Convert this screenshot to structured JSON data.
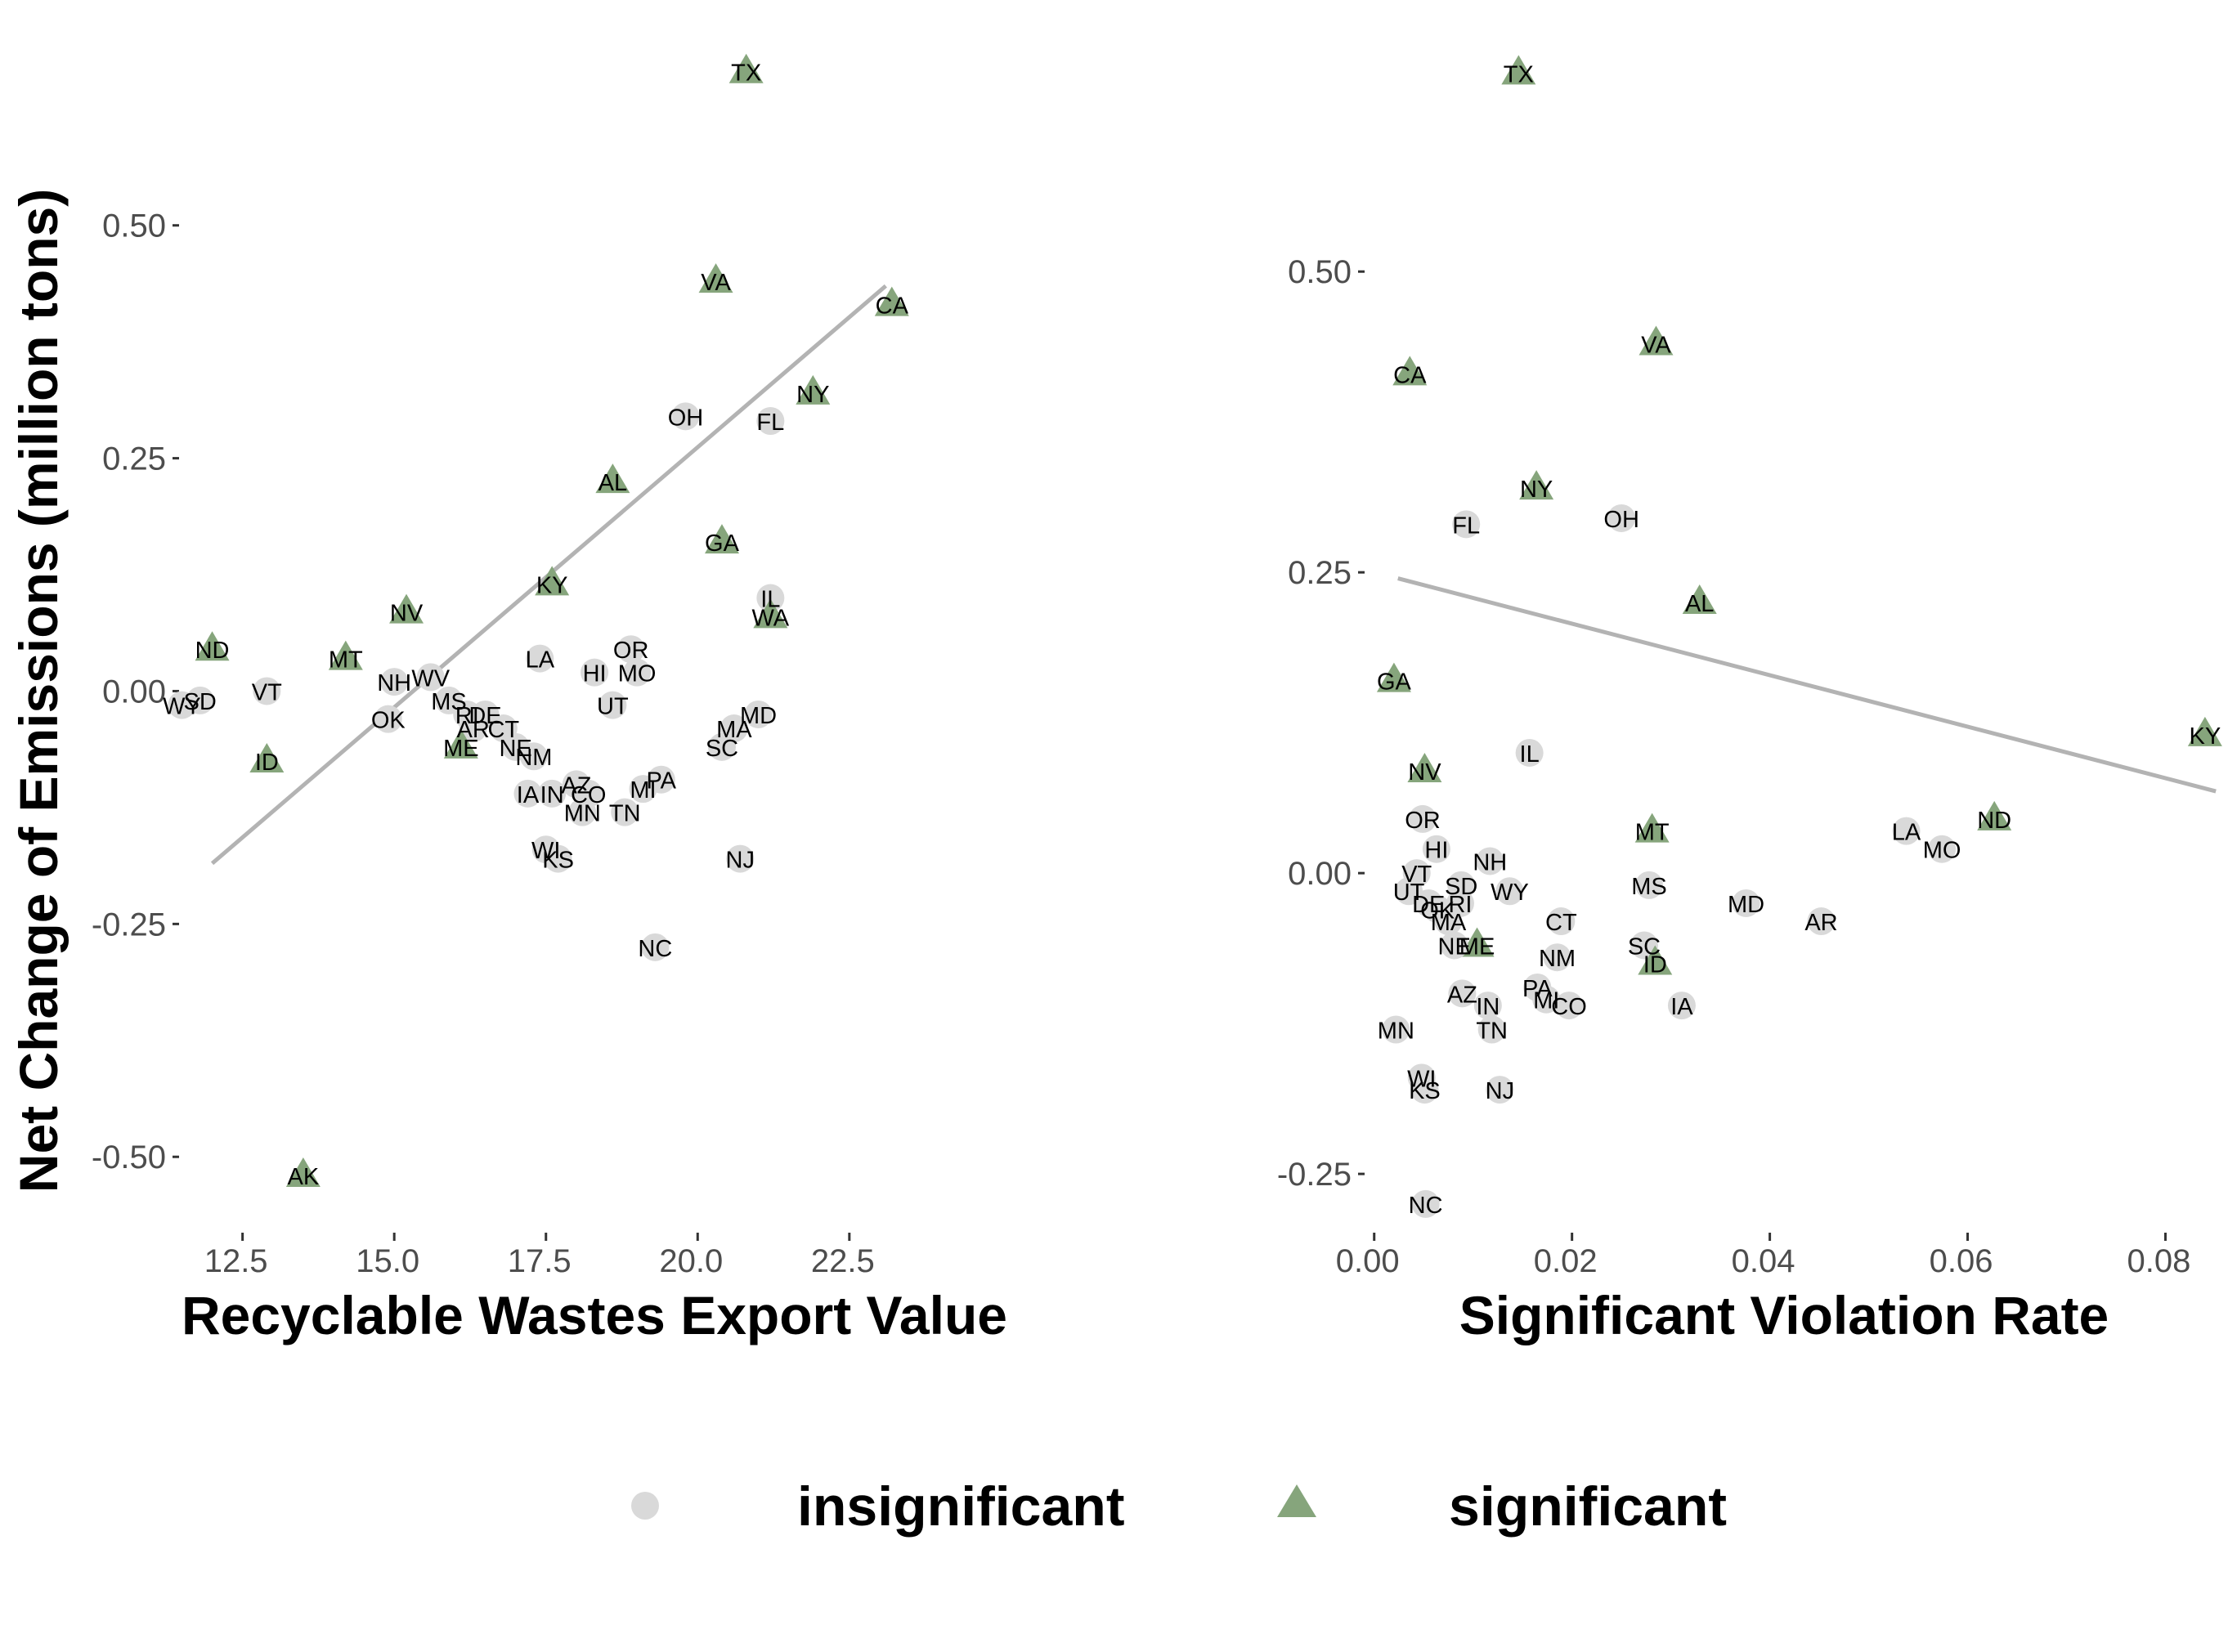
{
  "colors": {
    "insignificant": "#d9d9d9",
    "significant": "#86a57c",
    "fit_line": "#b3b3b3",
    "tick_text": "#4d4d4d"
  },
  "legend": {
    "placement": "bottom",
    "items": [
      {
        "label": "insignificant",
        "shape": "circle"
      },
      {
        "label": "significant",
        "shape": "triangle"
      }
    ]
  },
  "chart_data": [
    {
      "type": "scatter",
      "panel": "left",
      "xlabel": "Recyclable Wastes Export Value",
      "ylabel": "Net Change of Emissions (million tons)",
      "xlim": [
        11.4,
        24.2
      ],
      "ylim": [
        -0.57,
        0.67
      ],
      "grid": false,
      "xticks": [
        12.5,
        15.0,
        17.5,
        20.0,
        22.5
      ],
      "xtick_labels": [
        "12.5",
        "15.0",
        "17.5",
        "20.0",
        "22.5"
      ],
      "yticks": [
        0.5,
        0.25,
        0.0,
        -0.25,
        -0.5
      ],
      "ytick_labels": [
        "0.50",
        "0.25",
        "0.00",
        "-0.25",
        "-0.50"
      ],
      "fit_line": [
        [
          12.0,
          -0.185
        ],
        [
          23.1,
          0.435
        ]
      ],
      "points": [
        {
          "label": "TX",
          "x": 20.8,
          "y": 0.665,
          "group": "significant"
        },
        {
          "label": "VA",
          "x": 20.3,
          "y": 0.44,
          "group": "significant"
        },
        {
          "label": "CA",
          "x": 23.2,
          "y": 0.415,
          "group": "significant"
        },
        {
          "label": "NY",
          "x": 21.9,
          "y": 0.32,
          "group": "significant"
        },
        {
          "label": "OH",
          "x": 19.8,
          "y": 0.295,
          "group": "insignificant"
        },
        {
          "label": "FL",
          "x": 21.2,
          "y": 0.29,
          "group": "insignificant"
        },
        {
          "label": "AL",
          "x": 18.6,
          "y": 0.225,
          "group": "significant"
        },
        {
          "label": "GA",
          "x": 20.4,
          "y": 0.16,
          "group": "significant"
        },
        {
          "label": "KY",
          "x": 17.6,
          "y": 0.115,
          "group": "significant"
        },
        {
          "label": "IL",
          "x": 21.2,
          "y": 0.1,
          "group": "insignificant"
        },
        {
          "label": "WA",
          "x": 21.2,
          "y": 0.08,
          "group": "significant"
        },
        {
          "label": "NV",
          "x": 15.2,
          "y": 0.085,
          "group": "significant"
        },
        {
          "label": "ND",
          "x": 12.0,
          "y": 0.045,
          "group": "significant"
        },
        {
          "label": "OR",
          "x": 18.9,
          "y": 0.045,
          "group": "insignificant"
        },
        {
          "label": "MT",
          "x": 14.2,
          "y": 0.035,
          "group": "significant"
        },
        {
          "label": "LA",
          "x": 17.4,
          "y": 0.035,
          "group": "insignificant"
        },
        {
          "label": "HI",
          "x": 18.3,
          "y": 0.02,
          "group": "insignificant"
        },
        {
          "label": "MO",
          "x": 19.0,
          "y": 0.02,
          "group": "insignificant"
        },
        {
          "label": "WV",
          "x": 15.6,
          "y": 0.015,
          "group": "insignificant"
        },
        {
          "label": "NH",
          "x": 15.0,
          "y": 0.01,
          "group": "insignificant"
        },
        {
          "label": "VT",
          "x": 12.9,
          "y": 0.0,
          "group": "insignificant"
        },
        {
          "label": "SD",
          "x": 11.8,
          "y": -0.01,
          "group": "insignificant"
        },
        {
          "label": "WY",
          "x": 11.5,
          "y": -0.015,
          "group": "insignificant"
        },
        {
          "label": "MS",
          "x": 15.9,
          "y": -0.01,
          "group": "insignificant"
        },
        {
          "label": "UT",
          "x": 18.6,
          "y": -0.015,
          "group": "insignificant"
        },
        {
          "label": "OK",
          "x": 14.9,
          "y": -0.03,
          "group": "insignificant"
        },
        {
          "label": "RI",
          "x": 16.2,
          "y": -0.025,
          "group": "insignificant"
        },
        {
          "label": "DE",
          "x": 16.5,
          "y": -0.025,
          "group": "insignificant"
        },
        {
          "label": "MD",
          "x": 21.0,
          "y": -0.025,
          "group": "insignificant"
        },
        {
          "label": "AR",
          "x": 16.3,
          "y": -0.04,
          "group": "insignificant"
        },
        {
          "label": "CT",
          "x": 16.8,
          "y": -0.04,
          "group": "insignificant"
        },
        {
          "label": "MA",
          "x": 20.6,
          "y": -0.04,
          "group": "insignificant"
        },
        {
          "label": "ME",
          "x": 16.1,
          "y": -0.06,
          "group": "significant"
        },
        {
          "label": "NE",
          "x": 17.0,
          "y": -0.06,
          "group": "insignificant"
        },
        {
          "label": "SC",
          "x": 20.4,
          "y": -0.06,
          "group": "insignificant"
        },
        {
          "label": "NM",
          "x": 17.3,
          "y": -0.07,
          "group": "insignificant"
        },
        {
          "label": "ID",
          "x": 12.9,
          "y": -0.075,
          "group": "significant"
        },
        {
          "label": "PA",
          "x": 19.4,
          "y": -0.095,
          "group": "insignificant"
        },
        {
          "label": "AZ",
          "x": 18.0,
          "y": -0.1,
          "group": "insignificant"
        },
        {
          "label": "MI",
          "x": 19.1,
          "y": -0.105,
          "group": "insignificant"
        },
        {
          "label": "IA",
          "x": 17.2,
          "y": -0.11,
          "group": "insignificant"
        },
        {
          "label": "IN",
          "x": 17.6,
          "y": -0.11,
          "group": "insignificant"
        },
        {
          "label": "CO",
          "x": 18.2,
          "y": -0.11,
          "group": "insignificant"
        },
        {
          "label": "MN",
          "x": 18.1,
          "y": -0.13,
          "group": "insignificant"
        },
        {
          "label": "TN",
          "x": 18.8,
          "y": -0.13,
          "group": "insignificant"
        },
        {
          "label": "WI",
          "x": 17.5,
          "y": -0.17,
          "group": "insignificant"
        },
        {
          "label": "KS",
          "x": 17.7,
          "y": -0.18,
          "group": "insignificant"
        },
        {
          "label": "NJ",
          "x": 20.7,
          "y": -0.18,
          "group": "insignificant"
        },
        {
          "label": "NC",
          "x": 19.3,
          "y": -0.275,
          "group": "insignificant"
        },
        {
          "label": "AK",
          "x": 13.5,
          "y": -0.52,
          "group": "significant"
        }
      ]
    },
    {
      "type": "scatter",
      "panel": "right",
      "xlabel": "Significant Violation Rate",
      "ylabel": "",
      "xlim": [
        -0.0013,
        0.0855
      ],
      "ylim": [
        -0.29,
        0.67
      ],
      "grid": false,
      "xticks": [
        0.0,
        0.02,
        0.04,
        0.06,
        0.08
      ],
      "xtick_labels": [
        "0.00",
        "0.02",
        "0.04",
        "0.06",
        "0.08"
      ],
      "yticks": [
        0.5,
        0.25,
        0.0,
        -0.25
      ],
      "ytick_labels": [
        "0.50",
        "0.25",
        "0.00",
        "-0.25"
      ],
      "fit_line": [
        [
          0.0024,
          0.245
        ],
        [
          0.0851,
          0.068
        ]
      ],
      "points": [
        {
          "label": "TX",
          "x": 0.0146,
          "y": 0.665,
          "group": "significant"
        },
        {
          "label": "VA",
          "x": 0.0285,
          "y": 0.44,
          "group": "significant"
        },
        {
          "label": "CA",
          "x": 0.0036,
          "y": 0.415,
          "group": "significant"
        },
        {
          "label": "NY",
          "x": 0.0164,
          "y": 0.32,
          "group": "significant"
        },
        {
          "label": "OH",
          "x": 0.025,
          "y": 0.295,
          "group": "insignificant"
        },
        {
          "label": "FL",
          "x": 0.0093,
          "y": 0.29,
          "group": "insignificant"
        },
        {
          "label": "AL",
          "x": 0.0329,
          "y": 0.225,
          "group": "significant"
        },
        {
          "label": "GA",
          "x": 0.002,
          "y": 0.16,
          "group": "significant"
        },
        {
          "label": "KY",
          "x": 0.084,
          "y": 0.115,
          "group": "significant"
        },
        {
          "label": "IL",
          "x": 0.0157,
          "y": 0.1,
          "group": "insignificant"
        },
        {
          "label": "NV",
          "x": 0.0051,
          "y": 0.085,
          "group": "significant"
        },
        {
          "label": "OR",
          "x": 0.0049,
          "y": 0.045,
          "group": "insignificant"
        },
        {
          "label": "ND",
          "x": 0.0627,
          "y": 0.045,
          "group": "significant"
        },
        {
          "label": "MT",
          "x": 0.0281,
          "y": 0.035,
          "group": "significant"
        },
        {
          "label": "LA",
          "x": 0.0538,
          "y": 0.035,
          "group": "insignificant"
        },
        {
          "label": "HI",
          "x": 0.0063,
          "y": 0.02,
          "group": "insignificant"
        },
        {
          "label": "MO",
          "x": 0.0574,
          "y": 0.02,
          "group": "insignificant"
        },
        {
          "label": "NH",
          "x": 0.0117,
          "y": 0.01,
          "group": "insignificant"
        },
        {
          "label": "VT",
          "x": 0.0043,
          "y": 0.0,
          "group": "insignificant"
        },
        {
          "label": "SD",
          "x": 0.0088,
          "y": -0.01,
          "group": "insignificant"
        },
        {
          "label": "MS",
          "x": 0.0278,
          "y": -0.01,
          "group": "insignificant"
        },
        {
          "label": "WY",
          "x": 0.0137,
          "y": -0.015,
          "group": "insignificant"
        },
        {
          "label": "UT",
          "x": 0.0035,
          "y": -0.015,
          "group": "insignificant"
        },
        {
          "label": "OK",
          "x": 0.0064,
          "y": -0.03,
          "group": "insignificant"
        },
        {
          "label": "DE",
          "x": 0.0055,
          "y": -0.025,
          "group": "insignificant"
        },
        {
          "label": "RI",
          "x": 0.0087,
          "y": -0.025,
          "group": "insignificant"
        },
        {
          "label": "AR",
          "x": 0.0452,
          "y": -0.04,
          "group": "insignificant"
        },
        {
          "label": "MD",
          "x": 0.0376,
          "y": -0.025,
          "group": "insignificant"
        },
        {
          "label": "CT",
          "x": 0.0189,
          "y": -0.04,
          "group": "insignificant"
        },
        {
          "label": "MA",
          "x": 0.0075,
          "y": -0.04,
          "group": "insignificant"
        },
        {
          "label": "ME",
          "x": 0.0104,
          "y": -0.06,
          "group": "significant"
        },
        {
          "label": "NE",
          "x": 0.0081,
          "y": -0.06,
          "group": "insignificant"
        },
        {
          "label": "SC",
          "x": 0.0273,
          "y": -0.06,
          "group": "insignificant"
        },
        {
          "label": "NM",
          "x": 0.0185,
          "y": -0.07,
          "group": "insignificant"
        },
        {
          "label": "ID",
          "x": 0.0284,
          "y": -0.075,
          "group": "significant"
        },
        {
          "label": "PA",
          "x": 0.0165,
          "y": -0.095,
          "group": "insignificant"
        },
        {
          "label": "AZ",
          "x": 0.0089,
          "y": -0.1,
          "group": "insignificant"
        },
        {
          "label": "MI",
          "x": 0.0174,
          "y": -0.105,
          "group": "insignificant"
        },
        {
          "label": "IA",
          "x": 0.0311,
          "y": -0.11,
          "group": "insignificant"
        },
        {
          "label": "IN",
          "x": 0.0115,
          "y": -0.11,
          "group": "insignificant"
        },
        {
          "label": "CO",
          "x": 0.0197,
          "y": -0.11,
          "group": "insignificant"
        },
        {
          "label": "MN",
          "x": 0.0022,
          "y": -0.13,
          "group": "insignificant"
        },
        {
          "label": "TN",
          "x": 0.0119,
          "y": -0.13,
          "group": "insignificant"
        },
        {
          "label": "WI",
          "x": 0.0048,
          "y": -0.17,
          "group": "insignificant"
        },
        {
          "label": "KS",
          "x": 0.0051,
          "y": -0.18,
          "group": "insignificant"
        },
        {
          "label": "NJ",
          "x": 0.0127,
          "y": -0.18,
          "group": "insignificant"
        },
        {
          "label": "NC",
          "x": 0.0052,
          "y": -0.275,
          "group": "insignificant"
        }
      ]
    }
  ]
}
